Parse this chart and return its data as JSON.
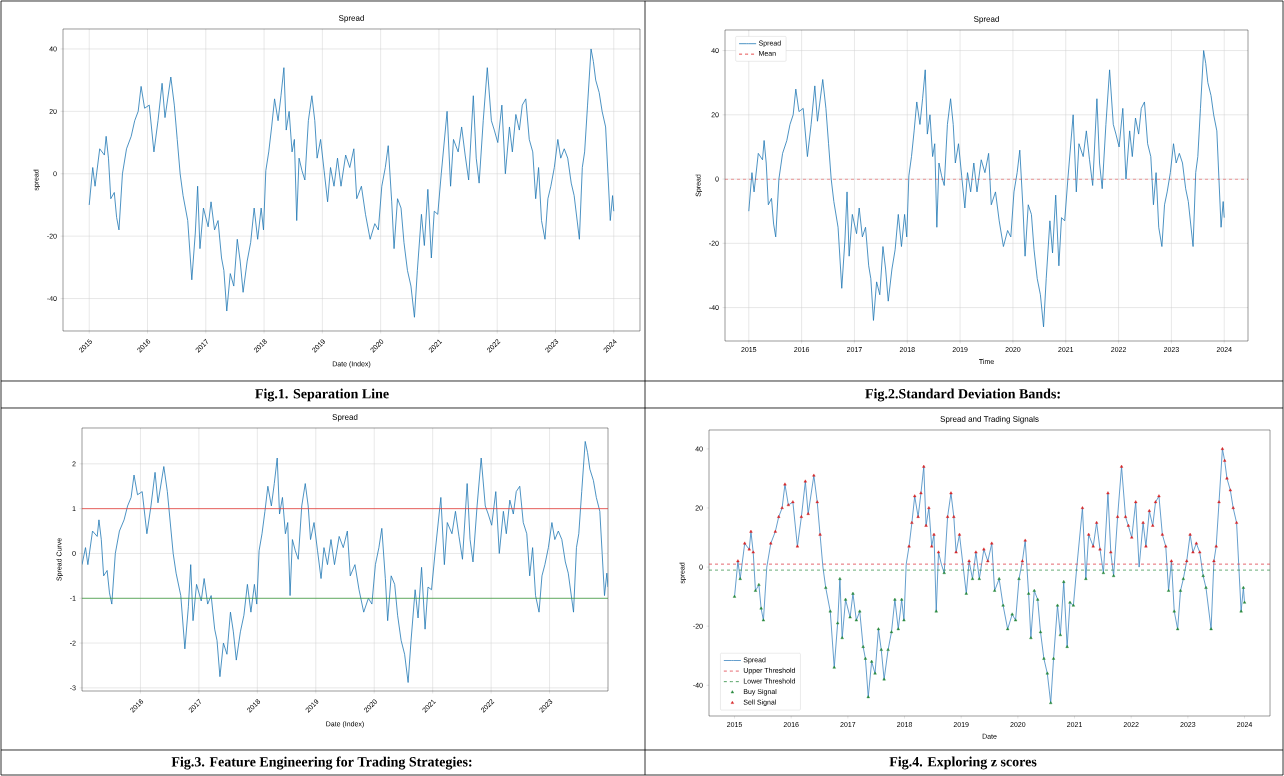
{
  "chart_data": [
    {
      "type": "line",
      "title": "Spread",
      "xlabel": "Date (Index)",
      "ylabel": "spread",
      "xlim": [
        2014.55,
        2024.45
      ],
      "ylim": [
        -50.4,
        46.4
      ],
      "xticks": [
        2015,
        2016,
        2017,
        2018,
        2019,
        2020,
        2021,
        2022,
        2023,
        2024
      ],
      "yticks": [
        -40,
        -20,
        0,
        20,
        40
      ],
      "grid": true,
      "annotations": [
        "Fig.1. Separation Line"
      ],
      "x": [
        2015.0,
        2015.06,
        2015.1,
        2015.18,
        2015.26,
        2015.29,
        2015.33,
        2015.37,
        2015.43,
        2015.47,
        2015.51,
        2015.57,
        2015.64,
        2015.72,
        2015.78,
        2015.84,
        2015.89,
        2015.95,
        2016.03,
        2016.11,
        2016.18,
        2016.25,
        2016.3,
        2016.4,
        2016.46,
        2016.51,
        2016.56,
        2016.61,
        2016.69,
        2016.76,
        2016.82,
        2016.86,
        2016.9,
        2016.96,
        2017.04,
        2017.09,
        2017.15,
        2017.21,
        2017.27,
        2017.31,
        2017.36,
        2017.42,
        2017.48,
        2017.54,
        2017.59,
        2017.64,
        2017.71,
        2017.77,
        2017.83,
        2017.89,
        2017.95,
        2017.99,
        2018.03,
        2018.08,
        2018.13,
        2018.18,
        2018.24,
        2018.29,
        2018.34,
        2018.38,
        2018.43,
        2018.48,
        2018.52,
        2018.56,
        2018.6,
        2018.65,
        2018.7,
        2018.76,
        2018.82,
        2018.87,
        2018.91,
        2018.97,
        2019.03,
        2019.09,
        2019.14,
        2019.2,
        2019.26,
        2019.32,
        2019.4,
        2019.47,
        2019.54,
        2019.59,
        2019.67,
        2019.74,
        2019.82,
        2019.9,
        2019.96,
        2020.02,
        2020.08,
        2020.13,
        2020.19,
        2020.23,
        2020.29,
        2020.35,
        2020.4,
        2020.46,
        2020.52,
        2020.58,
        2020.63,
        2020.7,
        2020.75,
        2020.81,
        2020.87,
        2020.92,
        2020.98,
        2021.04,
        2021.14,
        2021.2,
        2021.25,
        2021.33,
        2021.39,
        2021.45,
        2021.51,
        2021.59,
        2021.64,
        2021.69,
        2021.76,
        2021.83,
        2021.9,
        2021.95,
        2022.01,
        2022.08,
        2022.14,
        2022.21,
        2022.26,
        2022.32,
        2022.38,
        2022.43,
        2022.49,
        2022.55,
        2022.61,
        2022.66,
        2022.71,
        2022.76,
        2022.82,
        2022.87,
        2022.92,
        2022.98,
        2023.04,
        2023.09,
        2023.15,
        2023.21,
        2023.27,
        2023.32,
        2023.41,
        2023.46,
        2023.5,
        2023.55,
        2023.61,
        2023.65,
        2023.69,
        2023.75,
        2023.8,
        2023.86,
        2023.9,
        2023.94,
        2023.98,
        2024.0
      ],
      "series": [
        {
          "color": "#1f77b4",
          "values": [
            -10,
            2,
            -4,
            8,
            6,
            12,
            5,
            -8,
            -6,
            -14,
            -18,
            0,
            8,
            12,
            17,
            20,
            28,
            21,
            22,
            7,
            17,
            29,
            18,
            31,
            22,
            11,
            0,
            -7,
            -15,
            -34,
            -19,
            -4,
            -24,
            -11,
            -17,
            -9,
            -18,
            -15,
            -27,
            -31,
            -44,
            -32,
            -36,
            -21,
            -28,
            -38,
            -28,
            -22,
            -11,
            -21,
            -11,
            -18,
            1,
            7,
            15,
            24,
            17,
            25,
            34,
            14,
            20,
            7,
            11,
            -15,
            5,
            1,
            -2,
            17,
            25,
            17,
            5,
            11,
            1,
            -9,
            2,
            -4,
            5,
            -4,
            6,
            2,
            8,
            -8,
            -4,
            -13,
            -21,
            -16,
            -18,
            -4,
            2,
            9,
            -9,
            -24,
            -8,
            -11,
            -22,
            -31,
            -36,
            -46,
            -31,
            -13,
            -23,
            -5,
            -27,
            -12,
            -13,
            0,
            20,
            -4,
            11,
            7,
            15,
            6,
            -2,
            25,
            5,
            -3,
            17,
            34,
            17,
            14,
            10,
            22,
            0,
            15,
            7,
            19,
            14,
            22,
            24,
            11,
            7,
            -8,
            2,
            -15,
            -21,
            -8,
            -4,
            2,
            11,
            5,
            8,
            5,
            -3,
            -7,
            -21,
            2,
            7,
            22,
            40,
            36,
            30,
            26,
            20,
            15,
            0,
            -15,
            -7,
            -12
          ]
        }
      ]
    },
    {
      "type": "line",
      "title": "Spread",
      "xlabel": "Time",
      "ylabel": "Spread",
      "xlim": [
        2014.55,
        2024.45
      ],
      "ylim": [
        -50.4,
        46.4
      ],
      "xticks": [
        2015,
        2016,
        2017,
        2018,
        2019,
        2020,
        2021,
        2022,
        2023,
        2024
      ],
      "yticks": [
        -40,
        -20,
        0,
        20,
        40
      ],
      "grid": true,
      "legend": "top left",
      "annotations": [
        "Fig.2.Standard Deviation Bands:"
      ],
      "ref_lines": [
        {
          "axis": "y",
          "value": 0,
          "label": "Mean",
          "color": "#e02020",
          "line_style": "dashed"
        }
      ],
      "x": [
        2015.0,
        2015.06,
        2015.1,
        2015.18,
        2015.26,
        2015.29,
        2015.33,
        2015.37,
        2015.43,
        2015.47,
        2015.51,
        2015.57,
        2015.64,
        2015.72,
        2015.78,
        2015.84,
        2015.89,
        2015.95,
        2016.03,
        2016.11,
        2016.18,
        2016.25,
        2016.3,
        2016.4,
        2016.46,
        2016.51,
        2016.56,
        2016.61,
        2016.69,
        2016.76,
        2016.82,
        2016.86,
        2016.9,
        2016.96,
        2017.04,
        2017.09,
        2017.15,
        2017.21,
        2017.27,
        2017.31,
        2017.36,
        2017.42,
        2017.48,
        2017.54,
        2017.59,
        2017.64,
        2017.71,
        2017.77,
        2017.83,
        2017.89,
        2017.95,
        2017.99,
        2018.03,
        2018.08,
        2018.13,
        2018.18,
        2018.24,
        2018.29,
        2018.34,
        2018.38,
        2018.43,
        2018.48,
        2018.52,
        2018.56,
        2018.6,
        2018.65,
        2018.7,
        2018.76,
        2018.82,
        2018.87,
        2018.91,
        2018.97,
        2019.03,
        2019.09,
        2019.14,
        2019.2,
        2019.26,
        2019.32,
        2019.4,
        2019.47,
        2019.54,
        2019.59,
        2019.67,
        2019.74,
        2019.82,
        2019.9,
        2019.96,
        2020.02,
        2020.08,
        2020.13,
        2020.19,
        2020.23,
        2020.29,
        2020.35,
        2020.4,
        2020.46,
        2020.52,
        2020.58,
        2020.63,
        2020.7,
        2020.75,
        2020.81,
        2020.87,
        2020.92,
        2020.98,
        2021.04,
        2021.14,
        2021.2,
        2021.25,
        2021.33,
        2021.39,
        2021.45,
        2021.51,
        2021.59,
        2021.64,
        2021.69,
        2021.76,
        2021.83,
        2021.9,
        2021.95,
        2022.01,
        2022.08,
        2022.14,
        2022.21,
        2022.26,
        2022.32,
        2022.38,
        2022.43,
        2022.49,
        2022.55,
        2022.61,
        2022.66,
        2022.71,
        2022.76,
        2022.82,
        2022.87,
        2022.92,
        2022.98,
        2023.04,
        2023.09,
        2023.15,
        2023.21,
        2023.27,
        2023.32,
        2023.41,
        2023.46,
        2023.5,
        2023.55,
        2023.61,
        2023.65,
        2023.69,
        2023.75,
        2023.8,
        2023.86,
        2023.9,
        2023.94,
        2023.98,
        2024.0
      ],
      "series": [
        {
          "name": "Spread",
          "color": "#1f77b4",
          "values": [
            -10,
            2,
            -4,
            8,
            6,
            12,
            5,
            -8,
            -6,
            -14,
            -18,
            0,
            8,
            12,
            17,
            20,
            28,
            21,
            22,
            7,
            17,
            29,
            18,
            31,
            22,
            11,
            0,
            -7,
            -15,
            -34,
            -19,
            -4,
            -24,
            -11,
            -17,
            -9,
            -18,
            -15,
            -27,
            -31,
            -44,
            -32,
            -36,
            -21,
            -28,
            -38,
            -28,
            -22,
            -11,
            -21,
            -11,
            -18,
            1,
            7,
            15,
            24,
            17,
            25,
            34,
            14,
            20,
            7,
            11,
            -15,
            5,
            1,
            -2,
            17,
            25,
            17,
            5,
            11,
            1,
            -9,
            2,
            -4,
            5,
            -4,
            6,
            2,
            8,
            -8,
            -4,
            -13,
            -21,
            -16,
            -18,
            -4,
            2,
            9,
            -9,
            -24,
            -8,
            -11,
            -22,
            -31,
            -36,
            -46,
            -31,
            -13,
            -23,
            -5,
            -27,
            -12,
            -13,
            0,
            20,
            -4,
            11,
            7,
            15,
            6,
            -2,
            25,
            5,
            -3,
            17,
            34,
            17,
            14,
            10,
            22,
            0,
            15,
            7,
            19,
            14,
            22,
            24,
            11,
            7,
            -8,
            2,
            -15,
            -21,
            -8,
            -4,
            2,
            11,
            5,
            8,
            5,
            -3,
            -7,
            -21,
            2,
            7,
            22,
            40,
            36,
            30,
            26,
            20,
            15,
            0,
            -15,
            -7,
            -12
          ]
        }
      ]
    },
    {
      "type": "line",
      "title": "Spread",
      "xlabel": "Date (Index)",
      "ylabel": "Spread Curve",
      "xlim": [
        2015.0,
        2024.0
      ],
      "ylim": [
        -3.07,
        2.8
      ],
      "xticks": [
        2016,
        2017,
        2018,
        2019,
        2020,
        2021,
        2022,
        2023
      ],
      "yticks": [
        -3,
        -2,
        -1,
        0,
        1,
        2
      ],
      "grid": true,
      "annotations": [
        "Fig.3. Feature Engineering for Trading Strategies:"
      ],
      "ref_lines": [
        {
          "axis": "y",
          "value": 1,
          "color": "#e8413c"
        },
        {
          "axis": "y",
          "value": -1,
          "color": "#3a9a3a"
        }
      ],
      "x": [
        2015.0,
        2015.06,
        2015.1,
        2015.18,
        2015.26,
        2015.29,
        2015.33,
        2015.37,
        2015.43,
        2015.47,
        2015.51,
        2015.57,
        2015.64,
        2015.72,
        2015.78,
        2015.84,
        2015.89,
        2015.95,
        2016.03,
        2016.11,
        2016.18,
        2016.25,
        2016.3,
        2016.4,
        2016.46,
        2016.51,
        2016.56,
        2016.61,
        2016.69,
        2016.76,
        2016.82,
        2016.86,
        2016.9,
        2016.96,
        2017.04,
        2017.09,
        2017.15,
        2017.21,
        2017.27,
        2017.31,
        2017.36,
        2017.42,
        2017.48,
        2017.54,
        2017.59,
        2017.64,
        2017.71,
        2017.77,
        2017.83,
        2017.89,
        2017.95,
        2017.99,
        2018.03,
        2018.08,
        2018.13,
        2018.18,
        2018.24,
        2018.29,
        2018.34,
        2018.38,
        2018.43,
        2018.48,
        2018.52,
        2018.56,
        2018.6,
        2018.65,
        2018.7,
        2018.76,
        2018.82,
        2018.87,
        2018.91,
        2018.97,
        2019.03,
        2019.09,
        2019.14,
        2019.2,
        2019.26,
        2019.32,
        2019.4,
        2019.47,
        2019.54,
        2019.59,
        2019.67,
        2019.74,
        2019.82,
        2019.9,
        2019.96,
        2020.02,
        2020.08,
        2020.13,
        2020.19,
        2020.23,
        2020.29,
        2020.35,
        2020.4,
        2020.46,
        2020.52,
        2020.58,
        2020.63,
        2020.7,
        2020.75,
        2020.81,
        2020.87,
        2020.92,
        2020.98,
        2021.04,
        2021.14,
        2021.2,
        2021.25,
        2021.33,
        2021.39,
        2021.45,
        2021.51,
        2021.59,
        2021.64,
        2021.69,
        2021.76,
        2021.83,
        2021.9,
        2021.95,
        2022.01,
        2022.08,
        2022.14,
        2022.21,
        2022.26,
        2022.32,
        2022.38,
        2022.43,
        2022.49,
        2022.55,
        2022.61,
        2022.66,
        2022.71,
        2022.76,
        2022.82,
        2022.87,
        2022.92,
        2022.98,
        2023.04,
        2023.09,
        2023.15,
        2023.21,
        2023.27,
        2023.32,
        2023.41,
        2023.46,
        2023.5,
        2023.55,
        2023.61,
        2023.65,
        2023.69,
        2023.75,
        2023.8,
        2023.86,
        2023.9,
        2023.94,
        2023.98,
        2024.0
      ],
      "series": [
        {
          "color": "#1f77b4",
          "values": [
            -0.25,
            0.13,
            -0.25,
            0.5,
            0.38,
            0.75,
            0.31,
            -0.5,
            -0.38,
            -0.88,
            -1.13,
            0,
            0.5,
            0.75,
            1.06,
            1.25,
            1.75,
            1.31,
            1.38,
            0.44,
            1.06,
            1.81,
            1.13,
            1.94,
            1.38,
            0.69,
            0,
            -0.44,
            -0.94,
            -2.13,
            -1.19,
            -0.25,
            -1.5,
            -0.69,
            -1.06,
            -0.56,
            -1.13,
            -0.94,
            -1.69,
            -1.94,
            -2.75,
            -2,
            -2.25,
            -1.31,
            -1.75,
            -2.38,
            -1.75,
            -1.38,
            -0.69,
            -1.31,
            -0.69,
            -1.13,
            0.06,
            0.44,
            0.94,
            1.5,
            1.06,
            1.56,
            2.13,
            0.88,
            1.25,
            0.44,
            0.69,
            -0.94,
            0.31,
            0.06,
            -0.13,
            1.06,
            1.56,
            1.06,
            0.31,
            0.69,
            0.06,
            -0.56,
            0.13,
            -0.25,
            0.31,
            -0.25,
            0.38,
            0.13,
            0.5,
            -0.5,
            -0.25,
            -0.81,
            -1.31,
            -1,
            -1.13,
            -0.25,
            0.13,
            0.56,
            -0.56,
            -1.5,
            -0.5,
            -0.69,
            -1.38,
            -1.94,
            -2.25,
            -2.88,
            -1.94,
            -0.81,
            -1.44,
            -0.31,
            -1.69,
            -0.75,
            -0.81,
            0,
            1.25,
            -0.25,
            0.69,
            0.44,
            0.94,
            0.38,
            -0.13,
            1.56,
            0.31,
            -0.19,
            1.06,
            2.13,
            1.06,
            0.88,
            0.63,
            1.38,
            0,
            0.94,
            0.44,
            1.19,
            0.88,
            1.38,
            1.5,
            0.69,
            0.44,
            -0.5,
            0.13,
            -0.94,
            -1.31,
            -0.5,
            -0.25,
            0.13,
            0.69,
            0.31,
            0.5,
            0.31,
            -0.19,
            -0.44,
            -1.31,
            0.13,
            0.44,
            1.38,
            2.5,
            2.25,
            1.88,
            1.63,
            1.25,
            0.94,
            0,
            -0.94,
            -0.44,
            -0.75
          ]
        }
      ]
    },
    {
      "type": "line",
      "title": "Spread and Trading Signals",
      "xlabel": "Date",
      "ylabel": "spread",
      "xlim": [
        2014.55,
        2024.45
      ],
      "ylim": [
        -50.4,
        46.4
      ],
      "xticks": [
        2015,
        2016,
        2017,
        2018,
        2019,
        2020,
        2021,
        2022,
        2023,
        2024
      ],
      "yticks": [
        -40,
        -20,
        0,
        20,
        40
      ],
      "legend": "bottom left",
      "annotations": [
        "Fig.4. Exploring z scores"
      ],
      "ref_lines": [
        {
          "axis": "y",
          "value": 1,
          "label": "Upper Threshold",
          "color": "#e0404a",
          "line_style": "dashed"
        },
        {
          "axis": "y",
          "value": -1,
          "label": "Lower Threshold",
          "color": "#2a8a3e",
          "line_style": "dashed"
        }
      ],
      "x": [
        2015.0,
        2015.06,
        2015.1,
        2015.18,
        2015.26,
        2015.29,
        2015.33,
        2015.37,
        2015.43,
        2015.47,
        2015.51,
        2015.57,
        2015.64,
        2015.72,
        2015.78,
        2015.84,
        2015.89,
        2015.95,
        2016.03,
        2016.11,
        2016.18,
        2016.25,
        2016.3,
        2016.4,
        2016.46,
        2016.51,
        2016.56,
        2016.61,
        2016.69,
        2016.76,
        2016.82,
        2016.86,
        2016.9,
        2016.96,
        2017.04,
        2017.09,
        2017.15,
        2017.21,
        2017.27,
        2017.31,
        2017.36,
        2017.42,
        2017.48,
        2017.54,
        2017.59,
        2017.64,
        2017.71,
        2017.77,
        2017.83,
        2017.89,
        2017.95,
        2017.99,
        2018.03,
        2018.08,
        2018.13,
        2018.18,
        2018.24,
        2018.29,
        2018.34,
        2018.38,
        2018.43,
        2018.48,
        2018.52,
        2018.56,
        2018.6,
        2018.65,
        2018.7,
        2018.76,
        2018.82,
        2018.87,
        2018.91,
        2018.97,
        2019.03,
        2019.09,
        2019.14,
        2019.2,
        2019.26,
        2019.32,
        2019.4,
        2019.47,
        2019.54,
        2019.59,
        2019.67,
        2019.74,
        2019.82,
        2019.9,
        2019.96,
        2020.02,
        2020.08,
        2020.13,
        2020.19,
        2020.23,
        2020.29,
        2020.35,
        2020.4,
        2020.46,
        2020.52,
        2020.58,
        2020.63,
        2020.7,
        2020.75,
        2020.81,
        2020.87,
        2020.92,
        2020.98,
        2021.04,
        2021.14,
        2021.2,
        2021.25,
        2021.33,
        2021.39,
        2021.45,
        2021.51,
        2021.59,
        2021.64,
        2021.69,
        2021.76,
        2021.83,
        2021.9,
        2021.95,
        2022.01,
        2022.08,
        2022.14,
        2022.21,
        2022.26,
        2022.32,
        2022.38,
        2022.43,
        2022.49,
        2022.55,
        2022.61,
        2022.66,
        2022.71,
        2022.76,
        2022.82,
        2022.87,
        2022.92,
        2022.98,
        2023.04,
        2023.09,
        2023.15,
        2023.21,
        2023.27,
        2023.32,
        2023.41,
        2023.46,
        2023.5,
        2023.55,
        2023.61,
        2023.65,
        2023.69,
        2023.75,
        2023.8,
        2023.86,
        2023.9,
        2023.94,
        2023.98,
        2024.0
      ],
      "series": [
        {
          "name": "Spread",
          "color": "#3f86c0",
          "values": [
            -10,
            2,
            -4,
            8,
            6,
            12,
            5,
            -8,
            -6,
            -14,
            -18,
            0,
            8,
            12,
            17,
            20,
            28,
            21,
            22,
            7,
            17,
            29,
            18,
            31,
            22,
            11,
            0,
            -7,
            -15,
            -34,
            -19,
            -4,
            -24,
            -11,
            -17,
            -9,
            -18,
            -15,
            -27,
            -31,
            -44,
            -32,
            -36,
            -21,
            -28,
            -38,
            -28,
            -22,
            -11,
            -21,
            -11,
            -18,
            1,
            7,
            15,
            24,
            17,
            25,
            34,
            14,
            20,
            7,
            11,
            -15,
            5,
            1,
            -2,
            17,
            25,
            17,
            5,
            11,
            1,
            -9,
            2,
            -4,
            5,
            -4,
            6,
            2,
            8,
            -8,
            -4,
            -13,
            -21,
            -16,
            -18,
            -4,
            2,
            9,
            -9,
            -24,
            -8,
            -11,
            -22,
            -31,
            -36,
            -46,
            -31,
            -13,
            -23,
            -5,
            -27,
            -12,
            -13,
            0,
            20,
            -4,
            11,
            7,
            15,
            6,
            -2,
            25,
            5,
            -3,
            17,
            34,
            17,
            14,
            10,
            22,
            0,
            15,
            7,
            19,
            14,
            22,
            24,
            11,
            7,
            -8,
            2,
            -15,
            -21,
            -8,
            -4,
            2,
            11,
            5,
            8,
            5,
            -3,
            -7,
            -21,
            2,
            7,
            22,
            40,
            36,
            30,
            26,
            20,
            15,
            0,
            -15,
            -7,
            -12
          ]
        },
        {
          "name": "Buy Signal",
          "type": "scatter",
          "marker": "triangle",
          "color": "#2a8a3e",
          "values": [
            -10,
            null,
            -4,
            null,
            null,
            null,
            null,
            -8,
            -6,
            -14,
            -18,
            null,
            null,
            null,
            null,
            null,
            null,
            null,
            null,
            null,
            null,
            null,
            null,
            null,
            null,
            null,
            null,
            -7,
            -15,
            -34,
            -19,
            -4,
            -24,
            -11,
            -17,
            -9,
            -18,
            -15,
            -27,
            -31,
            -44,
            -32,
            -36,
            -21,
            -28,
            -38,
            -28,
            -22,
            -11,
            -21,
            -11,
            -18,
            null,
            null,
            null,
            null,
            null,
            null,
            null,
            null,
            null,
            null,
            null,
            -15,
            null,
            null,
            -2,
            null,
            null,
            null,
            null,
            null,
            null,
            -9,
            null,
            -4,
            null,
            -4,
            null,
            null,
            null,
            -8,
            -4,
            -13,
            -21,
            -16,
            -18,
            -4,
            null,
            null,
            -9,
            -24,
            -8,
            -11,
            -22,
            -31,
            -36,
            -46,
            -31,
            -13,
            -23,
            -5,
            -27,
            -12,
            -13,
            null,
            null,
            -4,
            null,
            null,
            null,
            null,
            -2,
            null,
            null,
            -3,
            null,
            null,
            null,
            null,
            null,
            null,
            null,
            null,
            null,
            null,
            null,
            null,
            null,
            null,
            null,
            -8,
            null,
            -15,
            -21,
            -8,
            -4,
            null,
            null,
            null,
            null,
            null,
            -3,
            -7,
            -21,
            null,
            null,
            null,
            null,
            null,
            null,
            null,
            null,
            null,
            null,
            -15,
            -7,
            -12
          ]
        },
        {
          "name": "Sell Signal",
          "type": "scatter",
          "marker": "triangle",
          "color": "#d62728",
          "values": [
            null,
            2,
            null,
            8,
            6,
            12,
            5,
            null,
            null,
            null,
            null,
            null,
            8,
            12,
            17,
            20,
            28,
            21,
            22,
            7,
            17,
            29,
            18,
            31,
            22,
            11,
            null,
            null,
            null,
            null,
            null,
            null,
            null,
            null,
            null,
            null,
            null,
            null,
            null,
            null,
            null,
            null,
            null,
            null,
            null,
            null,
            null,
            null,
            null,
            null,
            null,
            null,
            null,
            7,
            15,
            24,
            17,
            25,
            34,
            14,
            20,
            7,
            11,
            null,
            5,
            null,
            null,
            17,
            25,
            17,
            5,
            11,
            null,
            null,
            2,
            null,
            5,
            null,
            6,
            2,
            8,
            null,
            null,
            null,
            null,
            null,
            null,
            null,
            2,
            9,
            null,
            null,
            null,
            null,
            null,
            null,
            null,
            null,
            null,
            null,
            null,
            null,
            null,
            null,
            null,
            null,
            20,
            null,
            11,
            7,
            15,
            6,
            null,
            25,
            5,
            null,
            17,
            34,
            17,
            14,
            10,
            22,
            null,
            15,
            7,
            19,
            14,
            22,
            24,
            11,
            7,
            null,
            2,
            null,
            null,
            null,
            null,
            2,
            11,
            5,
            8,
            5,
            null,
            null,
            null,
            2,
            7,
            22,
            40,
            36,
            30,
            26,
            20,
            15,
            null,
            null,
            null,
            null
          ]
        }
      ]
    }
  ]
}
